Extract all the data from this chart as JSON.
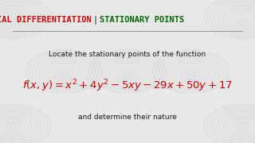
{
  "title_left": "PARTIAL DIFFERENTIATION",
  "title_separator": " | ",
  "title_right": "STATIONARY POINTS",
  "title_left_color": "#cc0000",
  "title_sep_color": "#444444",
  "title_right_color": "#006600",
  "title_fontsize": 7.5,
  "subtitle": "Locate the stationary points of the function",
  "subtitle_color": "#1a1a1a",
  "subtitle_fontsize": 6.5,
  "formula": "$f(x, y) = x^2 + 4y^2 - 5xy - 29x + 50y + 17$",
  "formula_color": "#cc0000",
  "formula_fontsize": 9.5,
  "footer": "and determine their nature",
  "footer_color": "#1a1a1a",
  "footer_fontsize": 6.5,
  "bg_color": "#e8e8e8",
  "swirl_color": "#bbbbbb",
  "underline_color": "#888888"
}
